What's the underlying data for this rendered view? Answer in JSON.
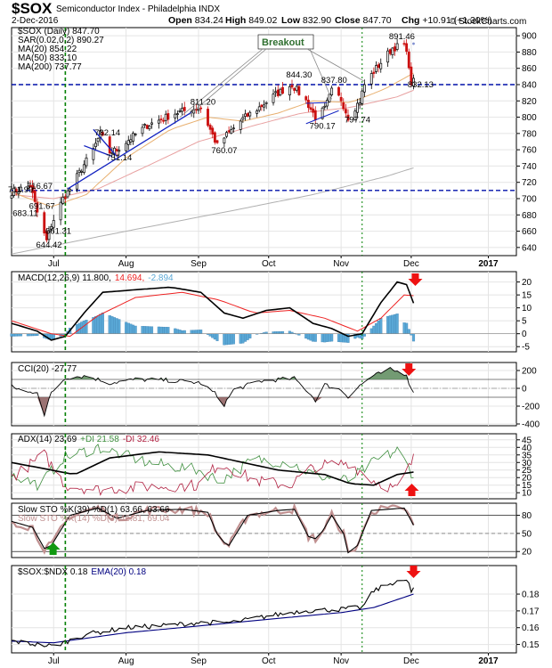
{
  "header": {
    "title": "$SOX",
    "subtitle": "Semiconductor Index - Philadelphia INDX",
    "date": "2-Dec-2016",
    "ohlc": [
      {
        "label": "Open",
        "value": "834.24"
      },
      {
        "label": "High",
        "value": "849.02"
      },
      {
        "label": "Low",
        "value": "832.90"
      },
      {
        "label": "Close",
        "value": "847.70"
      },
      {
        "label": "Chg",
        "value": "+10.91 (+1.30%)"
      }
    ],
    "watermark": "© StockCharts.com"
  },
  "colors": {
    "up": "#000000",
    "down": "#cc1111",
    "ma20": "#e8b070",
    "ma50": "#e8a0a0",
    "ma200": "#b0b0b0",
    "sar": "#8090d0",
    "macd": "#000000",
    "macd_signal": "#ee2222",
    "macd_hist": "#5aa8d6",
    "cci_fill": "#5a8a5a",
    "plus_di": "#3f8f3f",
    "minus_di": "#b02040",
    "trend_blue": "#1020c0",
    "dashed_blue": "#0010aa",
    "dashed_green": "#008000",
    "arrow_red": "#ee1111",
    "arrow_green": "#119911",
    "ema": "#000080"
  },
  "chart_data": [
    {
      "type": "candlestick",
      "title": "$SOX (Daily) 847.70",
      "legend": [
        {
          "name": "$SOX (Daily) 847.70",
          "icon": "candle-icon"
        },
        {
          "name": "SAR(0.02,0.2) 890.27",
          "icon": "dot-icon"
        },
        {
          "name": "MA(20) 854.22",
          "icon": "line-icon"
        },
        {
          "name": "MA(50) 833.10",
          "icon": "line-icon"
        },
        {
          "name": "MA(200) 737.77",
          "icon": "line-icon"
        }
      ],
      "ylim": [
        630,
        910
      ],
      "yticks": [
        640,
        660,
        680,
        700,
        720,
        740,
        760,
        780,
        800,
        820,
        840,
        860,
        880,
        900
      ],
      "xlim": [
        "2016-06-13",
        "2017-01-15"
      ],
      "xticks": [
        {
          "label": "Jul",
          "date": "2016-07-01"
        },
        {
          "label": "Aug",
          "date": "2016-08-01"
        },
        {
          "label": "Sep",
          "date": "2016-09-01"
        },
        {
          "label": "Oct",
          "date": "2016-10-01"
        },
        {
          "label": "Nov",
          "date": "2016-11-01"
        },
        {
          "label": "Dec",
          "date": "2016-12-01"
        },
        {
          "label": "2017",
          "date": "2017-01-03"
        }
      ],
      "close_keyframes": [
        [
          "2016-06-13",
          708
        ],
        [
          "2016-06-17",
          712
        ],
        [
          "2016-06-21",
          716
        ],
        [
          "2016-06-24",
          683
        ],
        [
          "2016-06-27",
          656
        ],
        [
          "2016-06-28",
          648
        ],
        [
          "2016-06-30",
          668
        ],
        [
          "2016-07-05",
          700
        ],
        [
          "2016-07-08",
          712
        ],
        [
          "2016-07-13",
          737
        ],
        [
          "2016-07-18",
          760
        ],
        [
          "2016-07-21",
          780
        ],
        [
          "2016-07-25",
          757
        ],
        [
          "2016-07-28",
          760
        ],
        [
          "2016-08-02",
          772
        ],
        [
          "2016-08-10",
          790
        ],
        [
          "2016-08-22",
          805
        ],
        [
          "2016-08-29",
          810
        ],
        [
          "2016-09-02",
          811
        ],
        [
          "2016-09-09",
          765
        ],
        [
          "2016-09-13",
          778
        ],
        [
          "2016-09-20",
          798
        ],
        [
          "2016-09-27",
          812
        ],
        [
          "2016-10-04",
          828
        ],
        [
          "2016-10-11",
          840
        ],
        [
          "2016-10-17",
          820
        ],
        [
          "2016-10-21",
          800
        ],
        [
          "2016-10-25",
          810
        ],
        [
          "2016-10-28",
          832
        ],
        [
          "2016-11-01",
          822
        ],
        [
          "2016-11-04",
          800
        ],
        [
          "2016-11-09",
          820
        ],
        [
          "2016-11-11",
          840
        ],
        [
          "2016-11-16",
          860
        ],
        [
          "2016-11-23",
          885
        ],
        [
          "2016-11-28",
          889
        ],
        [
          "2016-11-30",
          865
        ],
        [
          "2016-12-01",
          836
        ],
        [
          "2016-12-02",
          847.7
        ]
      ],
      "ma20": [
        [
          "2016-06-13",
          708
        ],
        [
          "2016-06-30",
          690
        ],
        [
          "2016-07-15",
          705
        ],
        [
          "2016-08-01",
          750
        ],
        [
          "2016-08-20",
          785
        ],
        [
          "2016-09-05",
          800
        ],
        [
          "2016-09-20",
          795
        ],
        [
          "2016-10-05",
          805
        ],
        [
          "2016-10-20",
          820
        ],
        [
          "2016-11-05",
          818
        ],
        [
          "2016-11-20",
          835
        ],
        [
          "2016-12-02",
          854.22
        ]
      ],
      "ma50": [
        [
          "2016-06-13",
          705
        ],
        [
          "2016-07-01",
          700
        ],
        [
          "2016-07-20",
          712
        ],
        [
          "2016-08-10",
          740
        ],
        [
          "2016-09-01",
          770
        ],
        [
          "2016-09-25",
          790
        ],
        [
          "2016-10-15",
          805
        ],
        [
          "2016-11-05",
          812
        ],
        [
          "2016-11-25",
          825
        ],
        [
          "2016-12-02",
          833.1
        ]
      ],
      "ma200": [
        [
          "2016-06-13",
          632
        ],
        [
          "2016-08-01",
          660
        ],
        [
          "2016-09-15",
          685
        ],
        [
          "2016-10-20",
          705
        ],
        [
          "2016-11-20",
          727
        ],
        [
          "2016-12-02",
          737.77
        ]
      ],
      "annotations": [
        {
          "text": "711.99",
          "date": "2016-06-13",
          "value": 711.99
        },
        {
          "text": "716.67",
          "date": "2016-06-21",
          "value": 716.67
        },
        {
          "text": "691.67",
          "date": "2016-06-22",
          "value": 691.67
        },
        {
          "text": "683.11",
          "date": "2016-06-15",
          "value": 683.11
        },
        {
          "text": "661.31",
          "date": "2016-06-29",
          "value": 661.31
        },
        {
          "text": "644.42",
          "date": "2016-06-25",
          "value": 644.42
        },
        {
          "text": "782.14",
          "date": "2016-07-20",
          "value": 782.14
        },
        {
          "text": "751.14",
          "date": "2016-07-25",
          "value": 751.14
        },
        {
          "text": "811.20",
          "date": "2016-08-30",
          "value": 811.2
        },
        {
          "text": "760.07",
          "date": "2016-09-08",
          "value": 760.07
        },
        {
          "text": "844.30",
          "date": "2016-10-10",
          "value": 844.3
        },
        {
          "text": "837.80",
          "date": "2016-10-25",
          "value": 837.8
        },
        {
          "text": "790.17",
          "date": "2016-10-20",
          "value": 790.17
        },
        {
          "text": "797.74",
          "date": "2016-11-04",
          "value": 797.74
        },
        {
          "text": "891.46",
          "date": "2016-11-23",
          "value": 891.46
        },
        {
          "text": "832.13",
          "date": "2016-12-01",
          "value": 832.13
        }
      ],
      "callout": {
        "text": "Breakout"
      },
      "hlines": [
        840,
        710
      ],
      "vlines": [
        "2016-07-06",
        "2016-11-10"
      ]
    },
    {
      "type": "line",
      "title": "MACD(12,26,9)",
      "legend": [
        {
          "name": "MACD(12,26,9) 11.800,",
          "color": "#000000"
        },
        {
          "name": "14.694,",
          "color": "#ee2222"
        },
        {
          "name": "-2.894",
          "color": "#5aa8d6"
        }
      ],
      "ylim": [
        -7,
        24
      ],
      "yticks": [
        -5,
        0,
        5,
        10,
        15,
        20
      ]
    },
    {
      "type": "line",
      "title": "CCI(20) -27.77",
      "legend": [
        {
          "name": "CCI(20) -27.77",
          "color": "#000000"
        }
      ],
      "ylim": [
        -420,
        290
      ],
      "yticks": [
        -400,
        -200,
        0,
        200
      ]
    },
    {
      "type": "line",
      "title": "ADX(14)",
      "legend": [
        {
          "name": "ADX(14) 23.69",
          "color": "#000000"
        },
        {
          "name": "+DI 21.58",
          "color": "#3f8f3f"
        },
        {
          "name": "-DI 32.46",
          "color": "#b02040"
        }
      ],
      "ylim": [
        6,
        49
      ],
      "yticks": [
        10,
        15,
        20,
        25,
        30,
        35,
        40,
        45
      ]
    },
    {
      "type": "line",
      "title": "Slow STO",
      "legend": [
        {
          "name": "Slow STO %K(39) %D(1) 63.66, 63.66",
          "color": "#000000"
        },
        {
          "name": "Slow STO %K(14) %D(3) 46.81, 69.04",
          "color": "#c09090"
        }
      ],
      "ylim": [
        10,
        100
      ],
      "yticks": [
        20,
        50,
        80
      ]
    },
    {
      "type": "line",
      "title": "$SOX:$NDX 0.18",
      "legend": [
        {
          "name": "$SOX:$NDX 0.18",
          "color": "#000000"
        },
        {
          "name": "EMA(20) 0.18",
          "color": "#000080"
        }
      ],
      "ylim": [
        0.145,
        0.197
      ],
      "yticks": [
        0.15,
        0.16,
        0.17,
        0.18
      ],
      "ytick_labels": [
        "0.15",
        "0.16",
        "0.17",
        "0.18"
      ]
    }
  ]
}
